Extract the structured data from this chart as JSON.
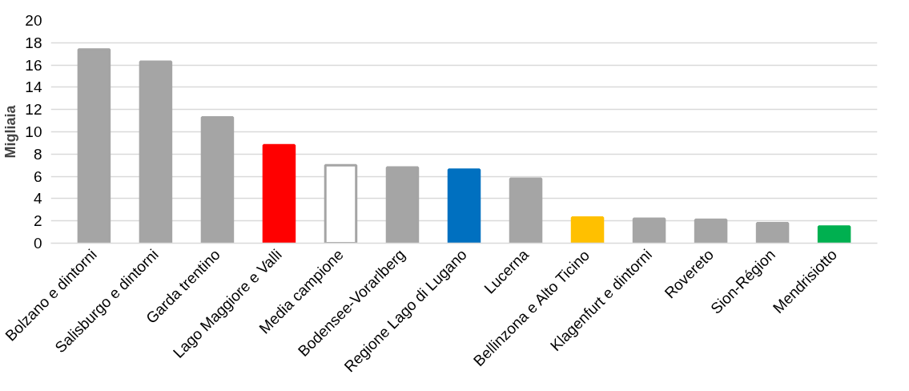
{
  "chart_data": {
    "type": "bar",
    "ylabel": "Migliaia",
    "categories": [
      "Bolzano e dintorni",
      "Salisburgo e dintorni",
      "Garda trentino",
      "Lago Maggiore e Valli",
      "Media campione",
      "Bodensee-Vorarlberg",
      "Regione Lago di Lugano",
      "Lucerna",
      "Bellinzona e Alto Ticino",
      "Klagenfurt e dintorni",
      "Rovereto",
      "Sion-Région",
      "Mendrisiotto"
    ],
    "values": [
      17.4,
      16.3,
      11.3,
      8.8,
      7.0,
      6.8,
      6.6,
      5.8,
      2.3,
      2.2,
      2.1,
      1.8,
      1.5
    ],
    "colors": [
      "#a5a5a5",
      "#a5a5a5",
      "#a5a5a5",
      "#ff0000",
      "#ffffff",
      "#a5a5a5",
      "#0070c0",
      "#a5a5a5",
      "#ffc000",
      "#a5a5a5",
      "#a5a5a5",
      "#a5a5a5",
      "#00b050"
    ],
    "ylim": [
      0,
      20
    ],
    "yticks": [
      0,
      2,
      4,
      6,
      8,
      10,
      12,
      14,
      16,
      18,
      20
    ],
    "grid": "y"
  }
}
